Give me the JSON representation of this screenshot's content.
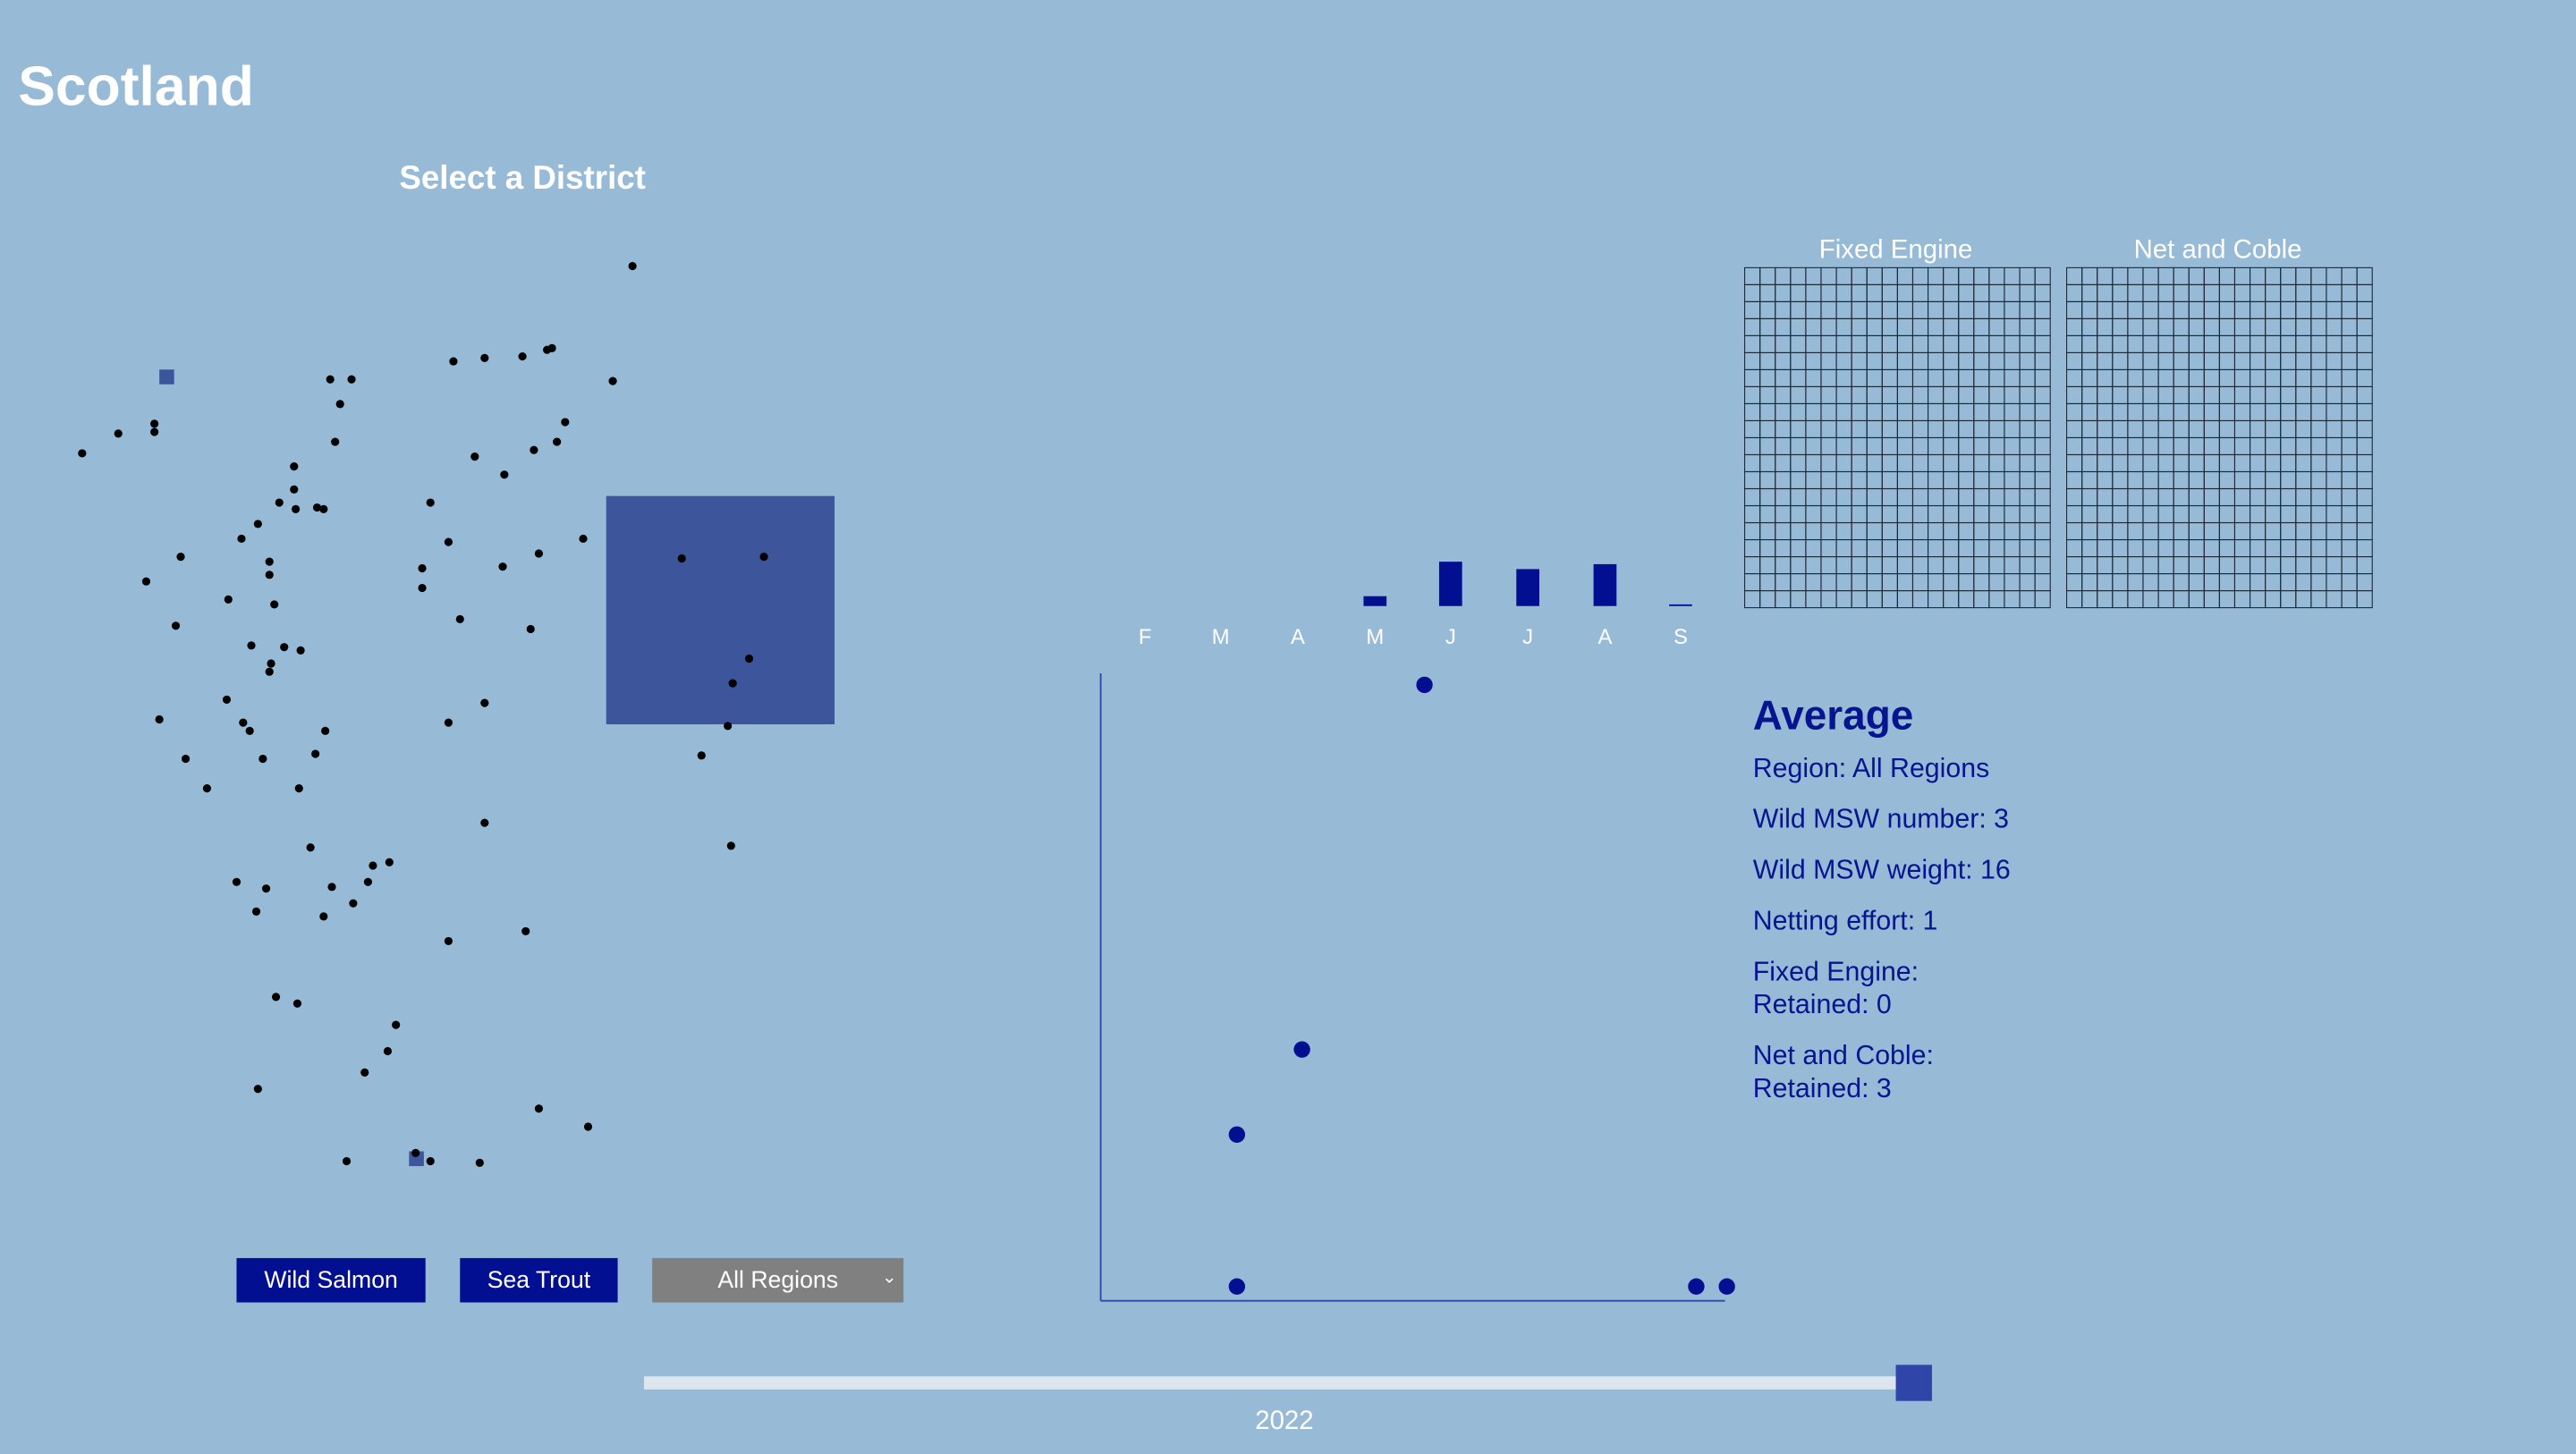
{
  "header": {
    "title": "Scotland",
    "subtitle": "Select a District"
  },
  "controls": {
    "wild_salmon": "Wild Salmon",
    "sea_trout": "Sea Trout",
    "region_select": "All Regions"
  },
  "grids": {
    "fixed_engine": "Fixed Engine",
    "net_and_coble": "Net and Coble",
    "rows": 20,
    "cols": 20
  },
  "months": [
    "F",
    "M",
    "A",
    "M",
    "J",
    "J",
    "A",
    "S"
  ],
  "chart_data": {
    "type": "bar",
    "categories": [
      "F",
      "M",
      "A",
      "M",
      "J",
      "J",
      "A",
      "S"
    ],
    "values": [
      0,
      0,
      0,
      2,
      9,
      7.5,
      8.5,
      0.3
    ],
    "scatter": {
      "type": "scatter",
      "points": [
        [
          4.65,
          10
        ],
        [
          3.05,
          4
        ],
        [
          2.2,
          2.6
        ],
        [
          2.2,
          0.1
        ],
        [
          8.2,
          0.1
        ],
        [
          8.6,
          0.1
        ]
      ]
    }
  },
  "info": {
    "heading": "Average",
    "region": "Region: All Regions",
    "msw_number": "Wild MSW number: 3",
    "msw_weight": "Wild MSW weight: 16",
    "netting": "Netting effort: 1",
    "fe_label": "Fixed Engine:",
    "fe_retained": "Retained: 0",
    "nc_label": "Net and Coble:",
    "nc_retained": "Retained: 3"
  },
  "slider": {
    "year": "2022",
    "position": 0.99
  },
  "colors": {
    "bg": "#97bbd7",
    "accent": "#020f91",
    "map_square": "#3d559a"
  }
}
